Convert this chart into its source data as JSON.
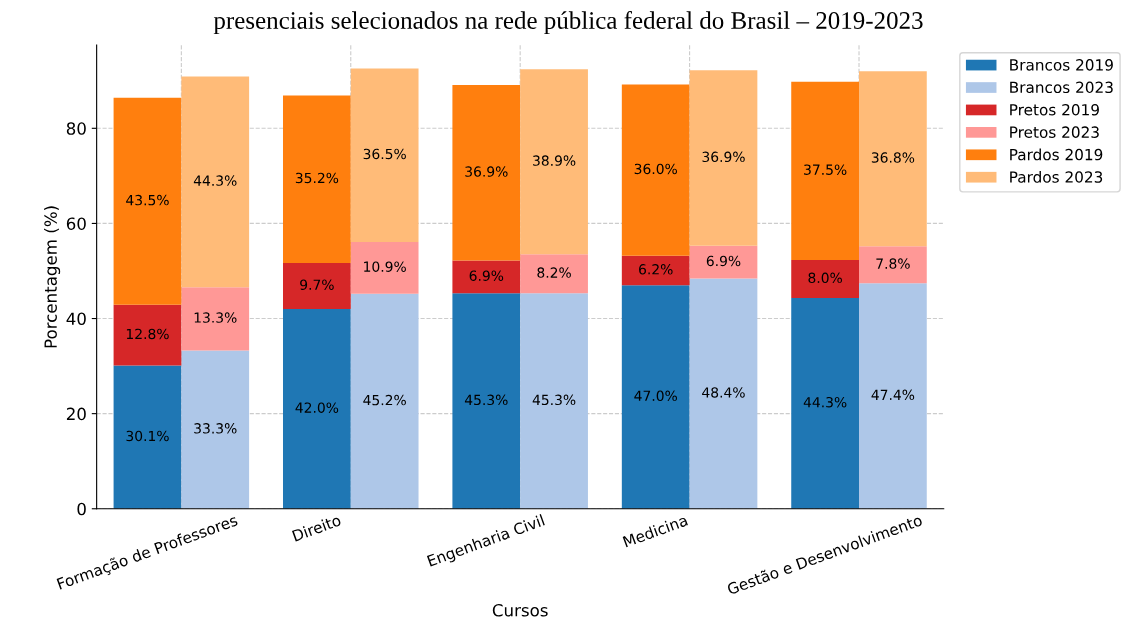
{
  "chart_data": {
    "type": "bar",
    "stacked": true,
    "title": "presenciais selecionados na rede pública federal do Brasil – 2019-2023",
    "xlabel": "Cursos",
    "ylabel": "Porcentagem (%)",
    "categories": [
      "Formação de Professores",
      null,
      "Direito",
      null,
      "Engenharia Civil",
      null,
      "Medicina",
      null,
      "Gestão e Desenvolvimento",
      null
    ],
    "ylim": [
      0,
      97.5
    ],
    "yticks": [
      0,
      20,
      40,
      60,
      80
    ],
    "grid": true,
    "legend": "top right",
    "series": [
      {
        "name": "Brancos 2019",
        "color": "#1f77b4",
        "values": [
          30.1,
          null,
          42.0,
          null,
          45.3,
          null,
          47.0,
          null,
          44.3,
          null
        ],
        "value_labels": [
          "30.1%",
          null,
          "42.0%",
          null,
          "45.3%",
          null,
          "47.0%",
          null,
          "44.3%",
          null
        ]
      },
      {
        "name": "Brancos 2023",
        "color": "#aec7e8",
        "values": [
          null,
          33.3,
          null,
          45.2,
          null,
          45.3,
          null,
          48.4,
          null,
          47.4
        ],
        "value_labels": [
          null,
          "33.3%",
          null,
          "45.2%",
          null,
          "45.3%",
          null,
          "48.4%",
          null,
          "47.4%"
        ]
      },
      {
        "name": "Pretos 2019",
        "color": "#d62728",
        "values": [
          12.8,
          null,
          9.7,
          null,
          6.9,
          null,
          6.2,
          null,
          8.0,
          null
        ],
        "value_labels": [
          "12.8%",
          null,
          "9.7%",
          null,
          "6.9%",
          null,
          "6.2%",
          null,
          "8.0%",
          null
        ]
      },
      {
        "name": "Pretos 2023",
        "color": "#ff9896",
        "values": [
          null,
          13.3,
          null,
          10.9,
          null,
          8.2,
          null,
          6.9,
          null,
          7.8
        ],
        "value_labels": [
          null,
          "13.3%",
          null,
          "10.9%",
          null,
          "8.2%",
          null,
          "6.9%",
          null,
          "7.8%"
        ]
      },
      {
        "name": "Pardos 2019",
        "color": "#ff7f0e",
        "values": [
          43.5,
          null,
          35.2,
          null,
          36.9,
          null,
          36.0,
          null,
          37.5,
          null
        ],
        "value_labels": [
          "43.5%",
          null,
          "35.2%",
          null,
          "36.9%",
          null,
          "36.0%",
          null,
          "37.5%",
          null
        ]
      },
      {
        "name": "Pardos 2023",
        "color": "#ffbb78",
        "values": [
          null,
          44.3,
          null,
          36.5,
          null,
          38.9,
          null,
          36.9,
          null,
          36.8
        ],
        "value_labels": [
          null,
          "44.3%",
          null,
          "36.5%",
          null,
          "38.9%",
          null,
          "36.9%",
          null,
          "36.8%"
        ]
      }
    ]
  }
}
